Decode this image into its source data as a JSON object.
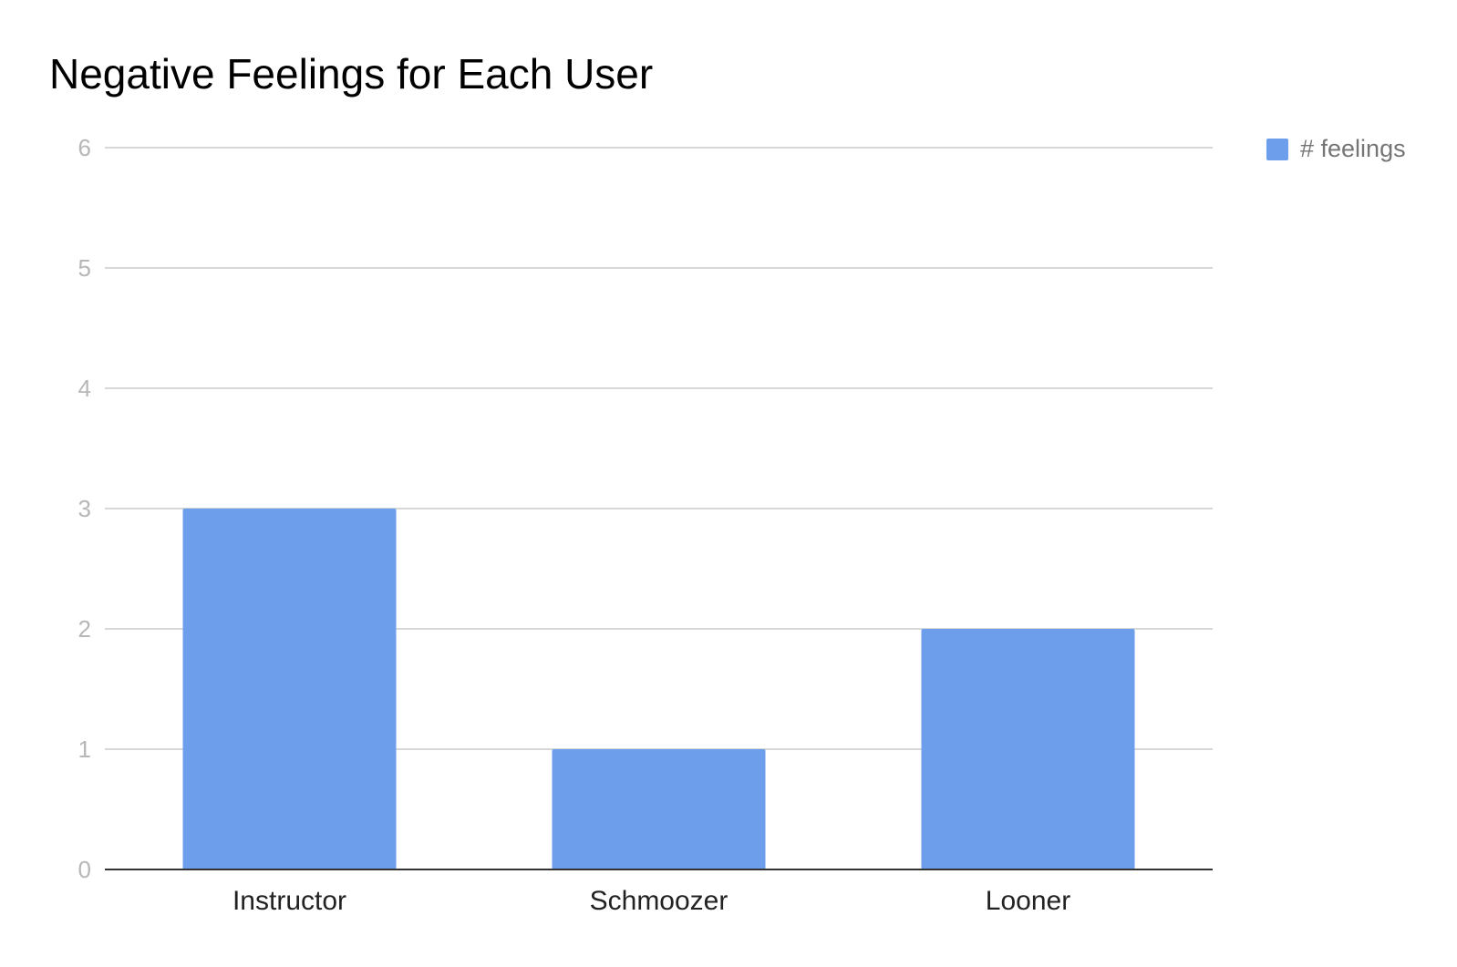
{
  "chart_data": {
    "type": "bar",
    "title": "Negative Feelings for Each User",
    "categories": [
      "Instructor",
      "Schmoozer",
      "Looner"
    ],
    "series": [
      {
        "name": "# feelings",
        "values": [
          3,
          1,
          2
        ],
        "color": "#6d9eeb"
      }
    ],
    "ylim": [
      0,
      6
    ],
    "yticks": [
      0,
      1,
      2,
      3,
      4,
      5,
      6
    ],
    "grid": true,
    "legend": "right",
    "colors": {
      "bar": "#6d9eeb",
      "grid": "#cccccc",
      "axis": "#333333",
      "tick_label": "#b7b7b7",
      "category_label": "#222222",
      "title": "#000000",
      "legend_text": "#757575"
    }
  }
}
